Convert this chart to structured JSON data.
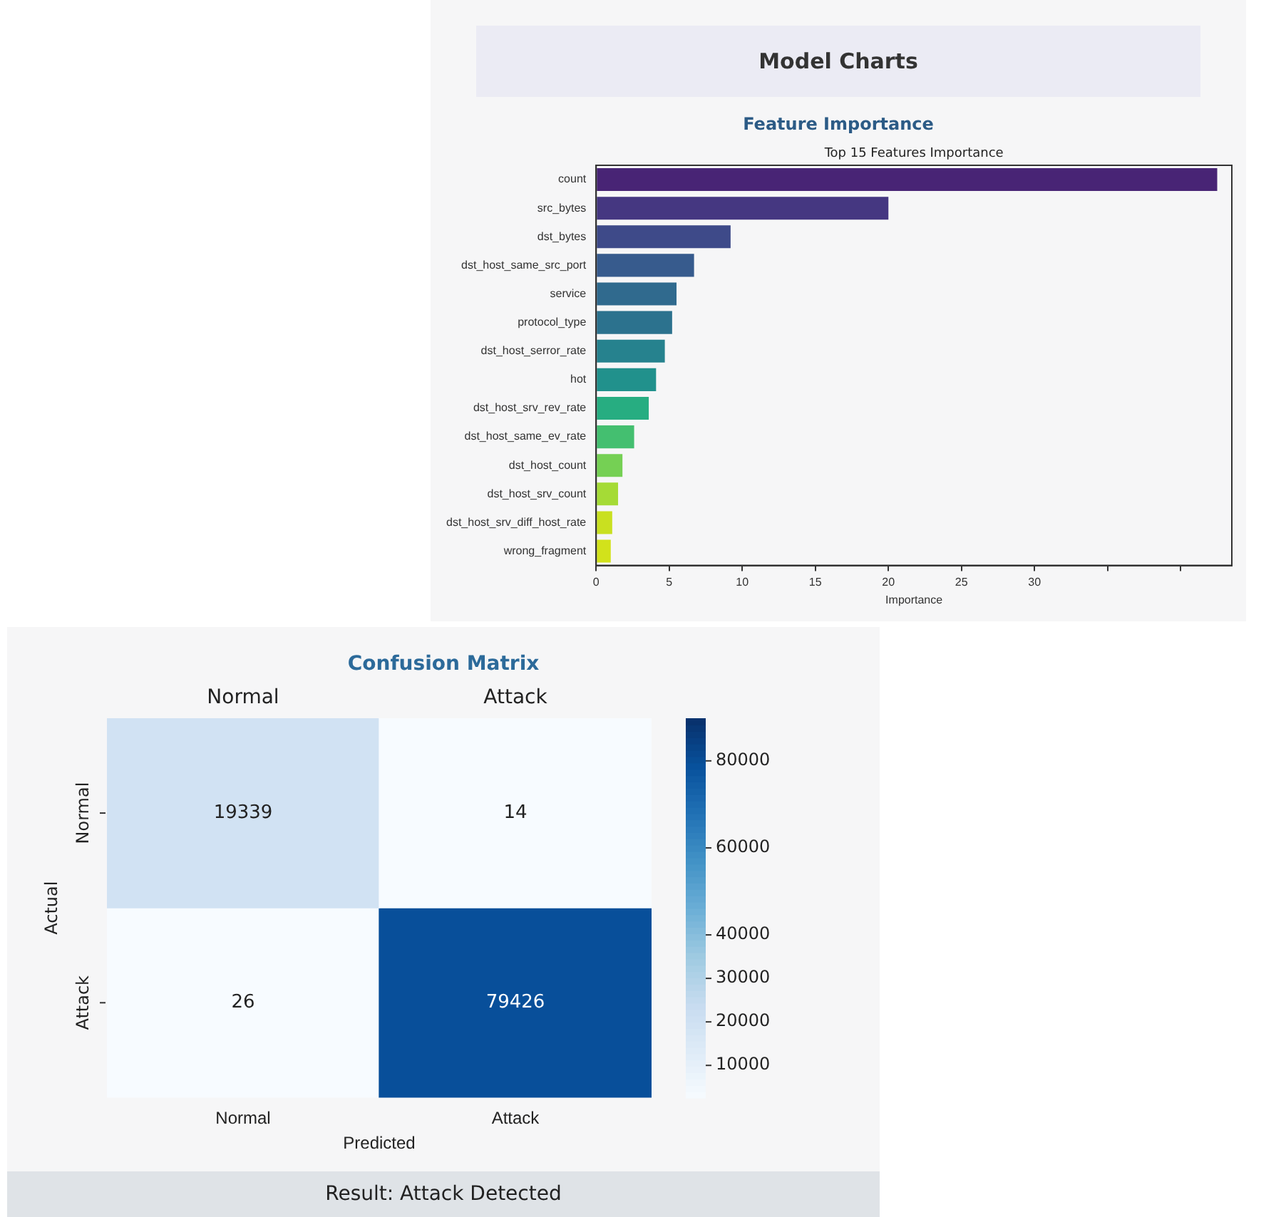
{
  "chart_data": [
    {
      "type": "bar",
      "orientation": "horizontal",
      "title": "Feature Importance",
      "subtitle": "Top 15 Features Importance",
      "annotations": [
        "Model Charts"
      ],
      "xlabel": "Importance",
      "categories": [
        "count",
        "src_bytes",
        "dst_bytes",
        "dst_host_same_src_port",
        "service",
        "protocol_type",
        "dst_host_serror_rate",
        "hot",
        "dst_host_srv_rev_rate",
        "dst_host_same_ev_rate",
        "dst_host_count",
        "dst_host_srv_count",
        "dst_host_srv_diff_host_rate",
        "wrong_fragment"
      ],
      "values": [
        42.5,
        20.0,
        9.2,
        6.7,
        5.5,
        5.2,
        4.7,
        4.1,
        3.6,
        2.6,
        1.8,
        1.5,
        1.1,
        1.0
      ],
      "colors": [
        "#482475",
        "#453781",
        "#3e4a89",
        "#375b8d",
        "#306a8e",
        "#2c728e",
        "#26828e",
        "#21918c",
        "#27ad81",
        "#44bf70",
        "#75d054",
        "#a5db36",
        "#c9e020",
        "#d2e21b"
      ],
      "xlim": [
        0,
        43.5
      ],
      "xticks": [
        0,
        5,
        10,
        15,
        20,
        25,
        30,
        {
          "value": 35,
          "label": null
        },
        {
          "value": 40,
          "label": null
        }
      ]
    },
    {
      "type": "heatmap",
      "title": "Confusion Matrix",
      "xlabel": "Predicted",
      "ylabel": "Actual",
      "annotations": [
        "Result: Attack Detected"
      ],
      "categories": [
        "Normal",
        "Attack"
      ],
      "y_categories": [
        "Normal",
        "Attack"
      ],
      "cells": [
        [
          19339,
          14
        ],
        [
          26,
          79426
        ]
      ],
      "data_labels": true,
      "clim": [
        2600,
        89800
      ],
      "cticks": [
        80000,
        60000,
        40000,
        30000,
        20000,
        10000
      ]
    }
  ]
}
